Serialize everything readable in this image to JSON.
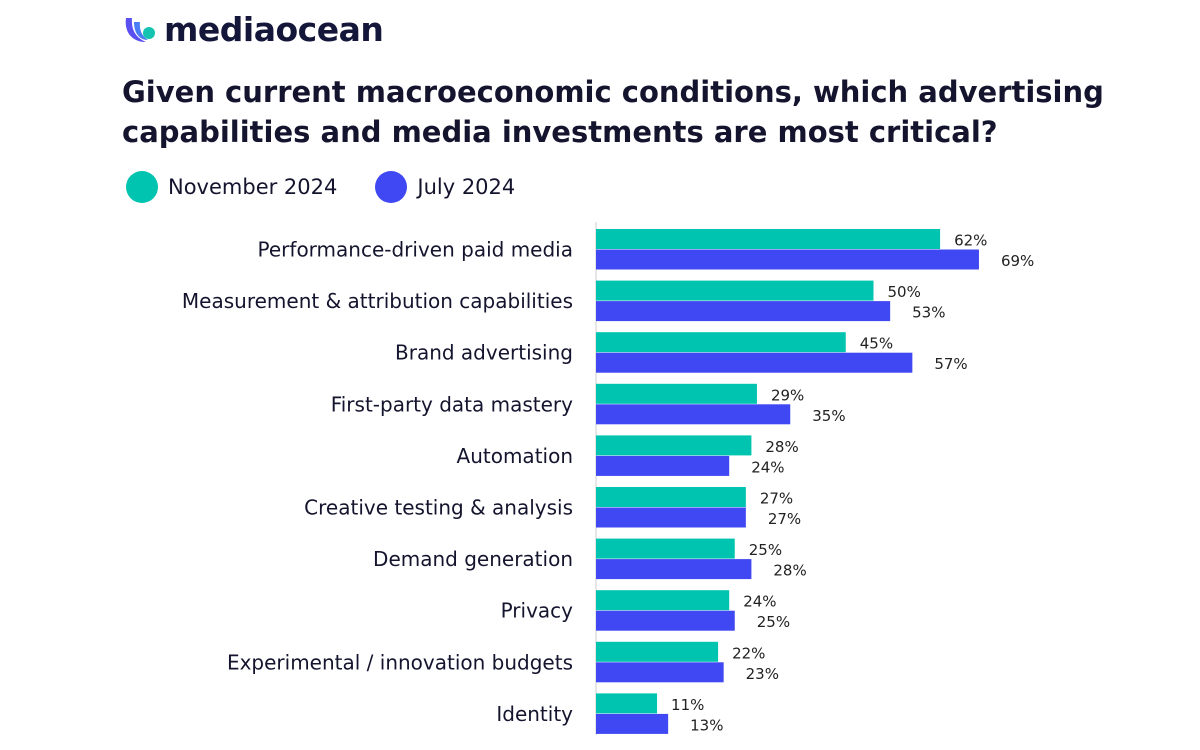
{
  "brand": {
    "logo_text": "mediaocean"
  },
  "chart_data": {
    "type": "bar",
    "orientation": "horizontal",
    "title": "Given current macroeconomic conditions, which advertising capabilities and media investments are most critical?",
    "categories": [
      "Performance-driven paid media",
      "Measurement & attribution capabilities",
      "Brand advertising",
      "First-party data mastery",
      "Automation",
      "Creative testing & analysis",
      "Demand generation",
      "Privacy",
      "Experimental / innovation budgets",
      "Identity"
    ],
    "series": [
      {
        "name": "November 2024",
        "color": "#00c4b0",
        "values": [
          62,
          50,
          45,
          29,
          28,
          27,
          25,
          24,
          22,
          11
        ]
      },
      {
        "name": "July 2024",
        "color": "#3f48f2",
        "values": [
          69,
          53,
          57,
          35,
          24,
          27,
          28,
          25,
          23,
          13
        ]
      }
    ],
    "value_suffix": "%",
    "xlim": [
      0,
      100
    ],
    "grid": false,
    "legend_position": "top-left"
  }
}
